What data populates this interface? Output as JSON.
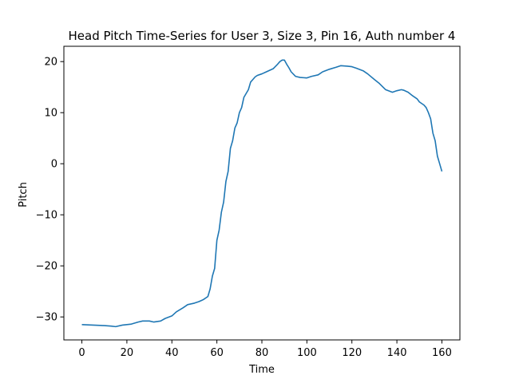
{
  "chart_data": {
    "type": "line",
    "title": "Head Pitch Time-Series for User 3, Size 3, Pin 16, Auth number 4",
    "xlabel": "Time",
    "ylabel": "Pitch",
    "xlim": [
      -8,
      168
    ],
    "ylim": [
      -34.5,
      23
    ],
    "xticks": [
      0,
      20,
      40,
      60,
      80,
      100,
      120,
      140,
      160
    ],
    "xtick_labels": [
      "0",
      "20",
      "40",
      "60",
      "80",
      "100",
      "120",
      "140",
      "160"
    ],
    "yticks": [
      -30,
      -20,
      -10,
      0,
      10,
      20
    ],
    "ytick_labels": [
      "−30",
      "−20",
      "−10",
      "0",
      "10",
      "20"
    ],
    "grid": false,
    "line_color": "#1f77b4",
    "series": [
      {
        "x": [
          0,
          5,
          10,
          13,
          15,
          18,
          22,
          25,
          27,
          30,
          32,
          35,
          37,
          40,
          42,
          45,
          47,
          50,
          52,
          54,
          56,
          57,
          58,
          59,
          60,
          61,
          62,
          63,
          64,
          65,
          66,
          67,
          68,
          69,
          70,
          71,
          72,
          74,
          75,
          76,
          77,
          78,
          80,
          82,
          85,
          87,
          88,
          89,
          90,
          91,
          92,
          93,
          95,
          97,
          100,
          102,
          105,
          107,
          110,
          113,
          115,
          118,
          120,
          122,
          125,
          127,
          130,
          132,
          135,
          138,
          140,
          142,
          143,
          145,
          147,
          149,
          150,
          152,
          153,
          154,
          155,
          156,
          157,
          158,
          159,
          160
        ],
        "y": [
          -31.5,
          -31.6,
          -31.7,
          -31.8,
          -31.9,
          -31.6,
          -31.4,
          -31.0,
          -30.8,
          -30.8,
          -31.0,
          -30.8,
          -30.3,
          -29.8,
          -29.0,
          -28.2,
          -27.6,
          -27.3,
          -27.0,
          -26.6,
          -26.0,
          -24.5,
          -22.0,
          -20.5,
          -15.0,
          -13.0,
          -9.5,
          -7.5,
          -3.5,
          -1.5,
          3.0,
          4.5,
          7.0,
          8.0,
          10.0,
          11.0,
          13.0,
          14.5,
          16.0,
          16.5,
          17.0,
          17.3,
          17.6,
          18.0,
          18.6,
          19.5,
          20.0,
          20.3,
          20.3,
          19.5,
          18.8,
          18.0,
          17.1,
          16.9,
          16.8,
          17.1,
          17.4,
          18.0,
          18.5,
          18.9,
          19.2,
          19.1,
          19.0,
          18.7,
          18.2,
          17.6,
          16.5,
          15.8,
          14.5,
          14.0,
          14.3,
          14.5,
          14.4,
          14.0,
          13.3,
          12.7,
          12.1,
          11.5,
          11.0,
          10.0,
          8.8,
          6.0,
          4.5,
          1.5,
          0.0,
          -1.5
        ]
      }
    ]
  }
}
